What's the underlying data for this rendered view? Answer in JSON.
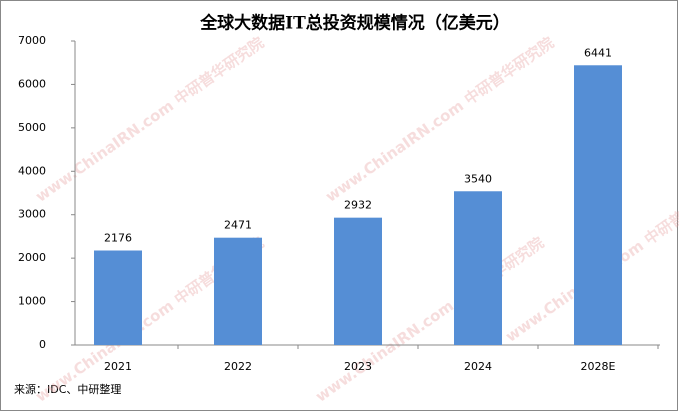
{
  "chart_data": {
    "type": "bar",
    "title": "全球大数据IT总投资规模情况（亿美元）",
    "categories": [
      "2021",
      "2022",
      "2023",
      "2024",
      "2028E"
    ],
    "values": [
      2176,
      2471,
      2932,
      3540,
      6441
    ],
    "color": "#558ed5",
    "ylim": [
      0,
      7000
    ],
    "yticks": [
      0,
      1000,
      2000,
      3000,
      4000,
      5000,
      6000,
      7000
    ],
    "source": "来源：IDC、中研整理",
    "watermark": "www.ChinaIRN.com 中研普华研究院"
  }
}
